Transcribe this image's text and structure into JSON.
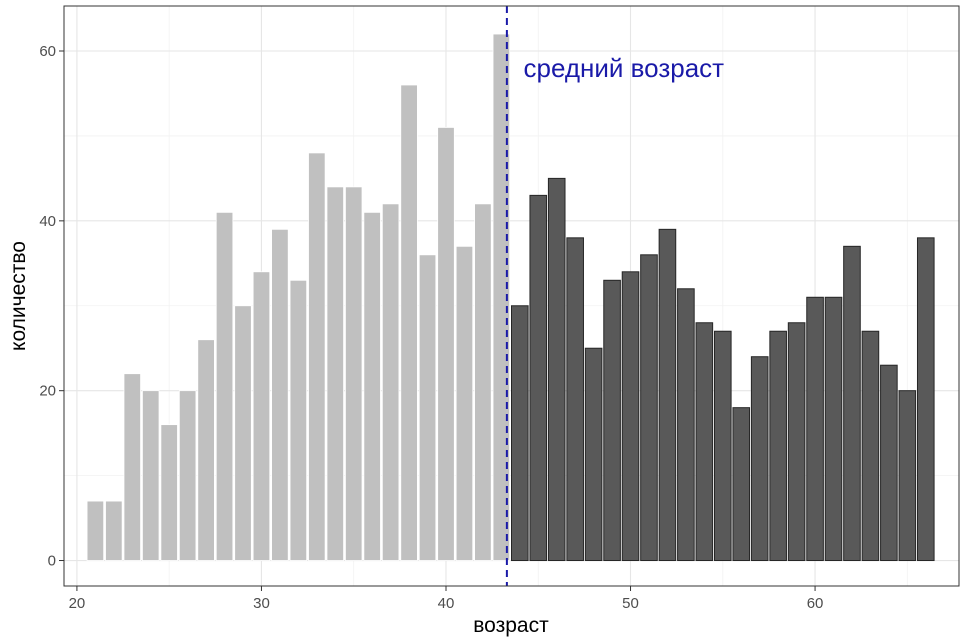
{
  "chart_data": {
    "type": "bar",
    "xlabel": "возраст",
    "ylabel": "количество",
    "xlim": [
      19.3,
      67.8
    ],
    "ylim": [
      -3,
      65.3
    ],
    "x_ticks": [
      20,
      30,
      40,
      50,
      60
    ],
    "y_ticks": [
      0,
      20,
      40,
      60
    ],
    "grid": true,
    "threshold": 43.3,
    "x": [
      21,
      22,
      23,
      24,
      25,
      26,
      27,
      28,
      29,
      30,
      31,
      32,
      33,
      34,
      35,
      36,
      37,
      38,
      39,
      40,
      41,
      42,
      43,
      44,
      45,
      46,
      47,
      48,
      49,
      50,
      51,
      52,
      53,
      54,
      55,
      56,
      57,
      58,
      59,
      60,
      61,
      62,
      63,
      64,
      65,
      66
    ],
    "values": [
      7,
      7,
      22,
      20,
      16,
      20,
      26,
      41,
      30,
      34,
      39,
      33,
      48,
      44,
      44,
      41,
      42,
      56,
      36,
      51,
      37,
      42,
      62,
      30,
      43,
      45,
      38,
      25,
      33,
      34,
      36,
      39,
      32,
      28,
      27,
      18,
      24,
      27,
      28,
      31,
      31,
      37,
      27,
      23,
      20,
      38
    ],
    "colors": {
      "below": "#c0c0c0",
      "above": "#595959",
      "above_stroke": "#262626",
      "mean_line": "#1a1aa8"
    },
    "annotations": [
      {
        "text": "средний возраст",
        "x": 44.2,
        "y": 58,
        "color": "#1a1aa8"
      }
    ]
  }
}
